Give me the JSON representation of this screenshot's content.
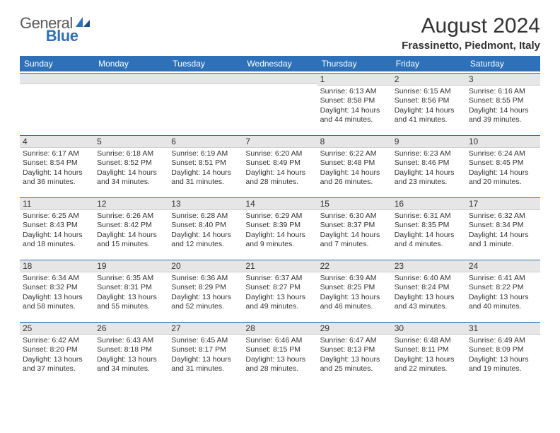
{
  "logo": {
    "text1": "General",
    "text2": "Blue"
  },
  "title": "August 2024",
  "location": "Frassinetto, Piedmont, Italy",
  "colors": {
    "brand_blue": "#2f71b8",
    "header_text": "#ffffff",
    "daynum_bg": "#e6e6e6",
    "text": "#333333",
    "logo_gray": "#5a5a5a",
    "background": "#ffffff",
    "row_border": "#2f71b8"
  },
  "typography": {
    "title_fontsize": 30,
    "location_fontsize": 15,
    "dayhead_fontsize": 12,
    "daynum_fontsize": 12,
    "info_fontsize": 10.5,
    "logo_fontsize": 22
  },
  "layout": {
    "columns": 7,
    "rows": 5,
    "first_day_column_index": 4,
    "cell_min_height": 88
  },
  "day_labels": [
    "Sunday",
    "Monday",
    "Tuesday",
    "Wednesday",
    "Thursday",
    "Friday",
    "Saturday"
  ],
  "days": [
    {
      "n": "1",
      "sunrise": "Sunrise: 6:13 AM",
      "sunset": "Sunset: 8:58 PM",
      "daylight": "Daylight: 14 hours and 44 minutes."
    },
    {
      "n": "2",
      "sunrise": "Sunrise: 6:15 AM",
      "sunset": "Sunset: 8:56 PM",
      "daylight": "Daylight: 14 hours and 41 minutes."
    },
    {
      "n": "3",
      "sunrise": "Sunrise: 6:16 AM",
      "sunset": "Sunset: 8:55 PM",
      "daylight": "Daylight: 14 hours and 39 minutes."
    },
    {
      "n": "4",
      "sunrise": "Sunrise: 6:17 AM",
      "sunset": "Sunset: 8:54 PM",
      "daylight": "Daylight: 14 hours and 36 minutes."
    },
    {
      "n": "5",
      "sunrise": "Sunrise: 6:18 AM",
      "sunset": "Sunset: 8:52 PM",
      "daylight": "Daylight: 14 hours and 34 minutes."
    },
    {
      "n": "6",
      "sunrise": "Sunrise: 6:19 AM",
      "sunset": "Sunset: 8:51 PM",
      "daylight": "Daylight: 14 hours and 31 minutes."
    },
    {
      "n": "7",
      "sunrise": "Sunrise: 6:20 AM",
      "sunset": "Sunset: 8:49 PM",
      "daylight": "Daylight: 14 hours and 28 minutes."
    },
    {
      "n": "8",
      "sunrise": "Sunrise: 6:22 AM",
      "sunset": "Sunset: 8:48 PM",
      "daylight": "Daylight: 14 hours and 26 minutes."
    },
    {
      "n": "9",
      "sunrise": "Sunrise: 6:23 AM",
      "sunset": "Sunset: 8:46 PM",
      "daylight": "Daylight: 14 hours and 23 minutes."
    },
    {
      "n": "10",
      "sunrise": "Sunrise: 6:24 AM",
      "sunset": "Sunset: 8:45 PM",
      "daylight": "Daylight: 14 hours and 20 minutes."
    },
    {
      "n": "11",
      "sunrise": "Sunrise: 6:25 AM",
      "sunset": "Sunset: 8:43 PM",
      "daylight": "Daylight: 14 hours and 18 minutes."
    },
    {
      "n": "12",
      "sunrise": "Sunrise: 6:26 AM",
      "sunset": "Sunset: 8:42 PM",
      "daylight": "Daylight: 14 hours and 15 minutes."
    },
    {
      "n": "13",
      "sunrise": "Sunrise: 6:28 AM",
      "sunset": "Sunset: 8:40 PM",
      "daylight": "Daylight: 14 hours and 12 minutes."
    },
    {
      "n": "14",
      "sunrise": "Sunrise: 6:29 AM",
      "sunset": "Sunset: 8:39 PM",
      "daylight": "Daylight: 14 hours and 9 minutes."
    },
    {
      "n": "15",
      "sunrise": "Sunrise: 6:30 AM",
      "sunset": "Sunset: 8:37 PM",
      "daylight": "Daylight: 14 hours and 7 minutes."
    },
    {
      "n": "16",
      "sunrise": "Sunrise: 6:31 AM",
      "sunset": "Sunset: 8:35 PM",
      "daylight": "Daylight: 14 hours and 4 minutes."
    },
    {
      "n": "17",
      "sunrise": "Sunrise: 6:32 AM",
      "sunset": "Sunset: 8:34 PM",
      "daylight": "Daylight: 14 hours and 1 minute."
    },
    {
      "n": "18",
      "sunrise": "Sunrise: 6:34 AM",
      "sunset": "Sunset: 8:32 PM",
      "daylight": "Daylight: 13 hours and 58 minutes."
    },
    {
      "n": "19",
      "sunrise": "Sunrise: 6:35 AM",
      "sunset": "Sunset: 8:31 PM",
      "daylight": "Daylight: 13 hours and 55 minutes."
    },
    {
      "n": "20",
      "sunrise": "Sunrise: 6:36 AM",
      "sunset": "Sunset: 8:29 PM",
      "daylight": "Daylight: 13 hours and 52 minutes."
    },
    {
      "n": "21",
      "sunrise": "Sunrise: 6:37 AM",
      "sunset": "Sunset: 8:27 PM",
      "daylight": "Daylight: 13 hours and 49 minutes."
    },
    {
      "n": "22",
      "sunrise": "Sunrise: 6:39 AM",
      "sunset": "Sunset: 8:25 PM",
      "daylight": "Daylight: 13 hours and 46 minutes."
    },
    {
      "n": "23",
      "sunrise": "Sunrise: 6:40 AM",
      "sunset": "Sunset: 8:24 PM",
      "daylight": "Daylight: 13 hours and 43 minutes."
    },
    {
      "n": "24",
      "sunrise": "Sunrise: 6:41 AM",
      "sunset": "Sunset: 8:22 PM",
      "daylight": "Daylight: 13 hours and 40 minutes."
    },
    {
      "n": "25",
      "sunrise": "Sunrise: 6:42 AM",
      "sunset": "Sunset: 8:20 PM",
      "daylight": "Daylight: 13 hours and 37 minutes."
    },
    {
      "n": "26",
      "sunrise": "Sunrise: 6:43 AM",
      "sunset": "Sunset: 8:18 PM",
      "daylight": "Daylight: 13 hours and 34 minutes."
    },
    {
      "n": "27",
      "sunrise": "Sunrise: 6:45 AM",
      "sunset": "Sunset: 8:17 PM",
      "daylight": "Daylight: 13 hours and 31 minutes."
    },
    {
      "n": "28",
      "sunrise": "Sunrise: 6:46 AM",
      "sunset": "Sunset: 8:15 PM",
      "daylight": "Daylight: 13 hours and 28 minutes."
    },
    {
      "n": "29",
      "sunrise": "Sunrise: 6:47 AM",
      "sunset": "Sunset: 8:13 PM",
      "daylight": "Daylight: 13 hours and 25 minutes."
    },
    {
      "n": "30",
      "sunrise": "Sunrise: 6:48 AM",
      "sunset": "Sunset: 8:11 PM",
      "daylight": "Daylight: 13 hours and 22 minutes."
    },
    {
      "n": "31",
      "sunrise": "Sunrise: 6:49 AM",
      "sunset": "Sunset: 8:09 PM",
      "daylight": "Daylight: 13 hours and 19 minutes."
    }
  ]
}
